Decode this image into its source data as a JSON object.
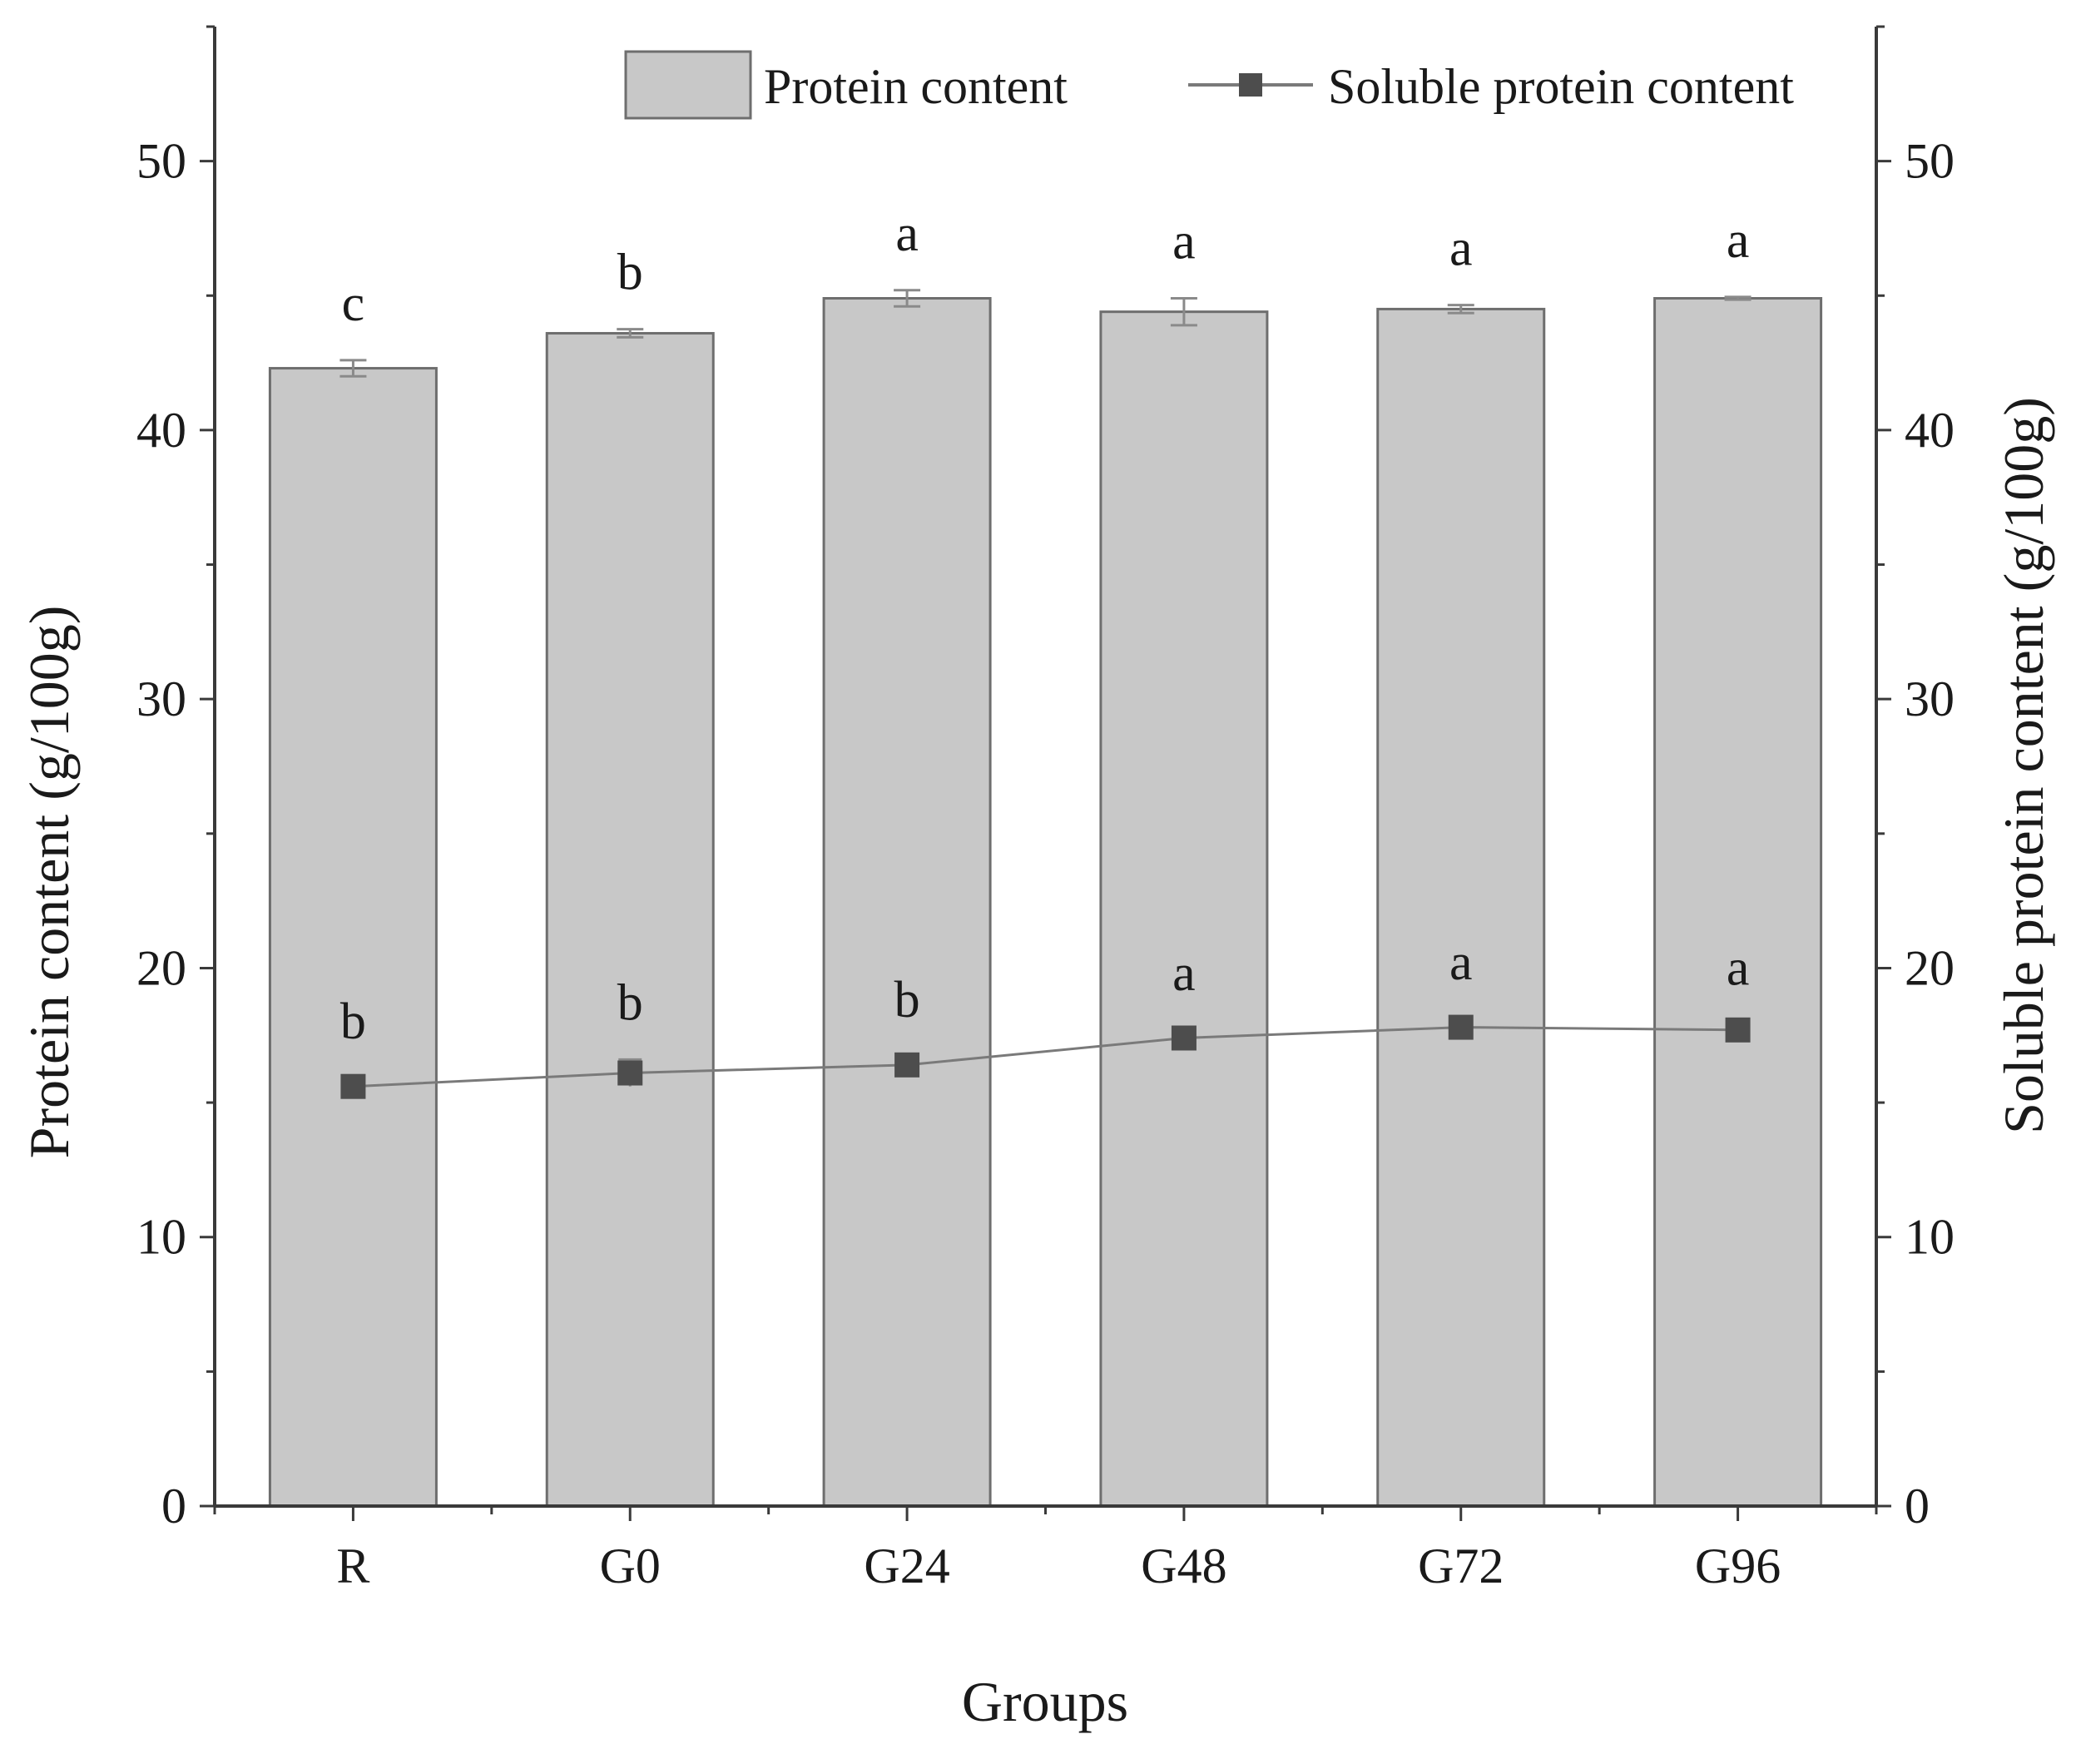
{
  "chart_data": {
    "type": "bar+line",
    "categories": [
      "R",
      "G0",
      "G24",
      "G48",
      "G72",
      "G96"
    ],
    "xlabel": "Groups",
    "ylabel_left": "Protein content (g/100g)",
    "ylabel_right": "Soluble protein content (g/100g)",
    "ylim": [
      0,
      55
    ],
    "yticks": [
      "0",
      "10",
      "20",
      "30",
      "40",
      "50"
    ],
    "bar_series": {
      "name": "Protein content",
      "values": [
        42.3,
        43.6,
        44.9,
        44.4,
        44.5,
        44.9
      ],
      "errors": [
        0.3,
        0.15,
        0.3,
        0.5,
        0.15,
        0.05
      ],
      "letters": [
        "c",
        "b",
        "a",
        "a",
        "a",
        "a"
      ]
    },
    "line_series": {
      "name": "Soluble protein content",
      "values": [
        15.6,
        16.1,
        16.4,
        17.4,
        17.8,
        17.7
      ],
      "errors": [
        0.3,
        0.5,
        0.3,
        0.3,
        0.3,
        0.2
      ],
      "letters": [
        "b",
        "b",
        "b",
        "a",
        "a",
        "a"
      ]
    },
    "legend": [
      "Protein content",
      "Soluble protein content"
    ],
    "colors": {
      "bar_fill": "#c8c8c8",
      "bar_stroke": "#6e6e6e",
      "line": "#7a7a7a",
      "marker": "#4d4d4d",
      "axis": "#3a3a3a"
    }
  }
}
